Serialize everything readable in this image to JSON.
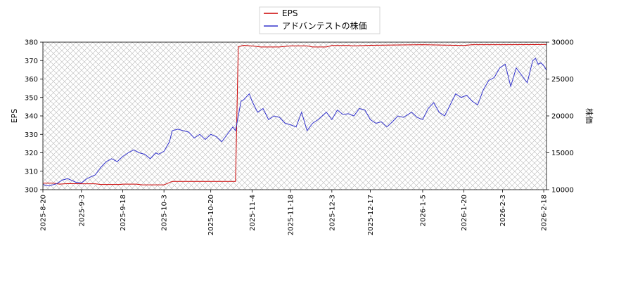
{
  "chart_data": {
    "type": "line",
    "legend": {
      "placement": "top-center",
      "entries": [
        "EPS",
        "アドバンテストの株価"
      ]
    },
    "grid": false,
    "hatched_background": true,
    "x_tick_labels": [
      "2025-8-20",
      "2025-9-3",
      "2025-9-18",
      "2025-10-3",
      "2025-10-20",
      "2025-11-4",
      "2025-11-18",
      "2025-12-3",
      "2025-12-17",
      "2026-1-5",
      "2026-1-20",
      "2026-2-3",
      "2026-2-18"
    ],
    "x_range": [
      "2025-08-20",
      "2026-02-19"
    ],
    "y_left": {
      "label": "EPS",
      "range": [
        300,
        380
      ],
      "ticks": [
        300,
        310,
        320,
        330,
        340,
        350,
        360,
        370,
        380
      ]
    },
    "y_right": {
      "label": "株価",
      "range": [
        10000,
        30000
      ],
      "ticks": [
        10000,
        15000,
        20000,
        25000,
        30000
      ]
    },
    "series": [
      {
        "name": "EPS",
        "axis": "left",
        "color": "#cc0000",
        "points": [
          [
            "2025-08-20",
            303.5
          ],
          [
            "2025-08-24",
            303.5
          ],
          [
            "2025-08-26",
            303.0
          ],
          [
            "2025-08-29",
            303.3
          ],
          [
            "2025-09-03",
            303.2
          ],
          [
            "2025-09-08",
            303.2
          ],
          [
            "2025-09-10",
            302.8
          ],
          [
            "2025-09-17",
            302.8
          ],
          [
            "2025-09-18",
            303.0
          ],
          [
            "2025-09-23",
            303.0
          ],
          [
            "2025-09-25",
            302.6
          ],
          [
            "2025-10-01",
            302.6
          ],
          [
            "2025-10-03",
            302.6
          ],
          [
            "2025-10-06",
            304.5
          ],
          [
            "2025-10-14",
            304.5
          ],
          [
            "2025-10-20",
            304.5
          ],
          [
            "2025-10-28",
            304.5
          ],
          [
            "2025-10-29",
            304.5
          ],
          [
            "2025-10-30",
            377.5
          ],
          [
            "2025-11-01",
            378.3
          ],
          [
            "2025-11-05",
            377.8
          ],
          [
            "2025-11-07",
            377.4
          ],
          [
            "2025-11-14",
            377.4
          ],
          [
            "2025-11-18",
            378.0
          ],
          [
            "2025-11-24",
            378.0
          ],
          [
            "2025-11-26",
            377.4
          ],
          [
            "2025-12-01",
            377.4
          ],
          [
            "2025-12-03",
            378.2
          ],
          [
            "2025-12-09",
            378.2
          ],
          [
            "2025-12-11",
            378.0
          ],
          [
            "2025-12-17",
            378.3
          ],
          [
            "2026-01-05",
            378.6
          ],
          [
            "2026-01-13",
            378.4
          ],
          [
            "2026-01-20",
            378.2
          ],
          [
            "2026-01-23",
            378.6
          ],
          [
            "2026-02-03",
            378.6
          ],
          [
            "2026-02-18",
            378.7
          ],
          [
            "2026-02-19",
            378.7
          ]
        ]
      },
      {
        "name": "アドバンテストの株価",
        "axis": "right",
        "color": "#3333cc",
        "points": [
          [
            "2025-08-20",
            10700
          ],
          [
            "2025-08-22",
            10500
          ],
          [
            "2025-08-25",
            10800
          ],
          [
            "2025-08-27",
            11300
          ],
          [
            "2025-08-29",
            11500
          ],
          [
            "2025-09-01",
            11000
          ],
          [
            "2025-09-03",
            10900
          ],
          [
            "2025-09-05",
            11500
          ],
          [
            "2025-09-08",
            12000
          ],
          [
            "2025-09-10",
            13000
          ],
          [
            "2025-09-12",
            13800
          ],
          [
            "2025-09-14",
            14200
          ],
          [
            "2025-09-16",
            13800
          ],
          [
            "2025-09-18",
            14500
          ],
          [
            "2025-09-20",
            15000
          ],
          [
            "2025-09-22",
            15400
          ],
          [
            "2025-09-24",
            15000
          ],
          [
            "2025-09-26",
            14800
          ],
          [
            "2025-09-28",
            14200
          ],
          [
            "2025-09-30",
            15000
          ],
          [
            "2025-10-01",
            14800
          ],
          [
            "2025-10-03",
            15200
          ],
          [
            "2025-10-05",
            16500
          ],
          [
            "2025-10-06",
            18000
          ],
          [
            "2025-10-08",
            18200
          ],
          [
            "2025-10-10",
            18000
          ],
          [
            "2025-10-12",
            17800
          ],
          [
            "2025-10-14",
            17000
          ],
          [
            "2025-10-16",
            17500
          ],
          [
            "2025-10-18",
            16800
          ],
          [
            "2025-10-20",
            17500
          ],
          [
            "2025-10-22",
            17200
          ],
          [
            "2025-10-24",
            16500
          ],
          [
            "2025-10-26",
            17500
          ],
          [
            "2025-10-28",
            18500
          ],
          [
            "2025-10-29",
            18000
          ],
          [
            "2025-10-31",
            22000
          ],
          [
            "2025-11-01",
            22200
          ],
          [
            "2025-11-03",
            23000
          ],
          [
            "2025-11-04",
            22000
          ],
          [
            "2025-11-06",
            20500
          ],
          [
            "2025-11-08",
            21000
          ],
          [
            "2025-11-10",
            19500
          ],
          [
            "2025-11-12",
            20000
          ],
          [
            "2025-11-14",
            19800
          ],
          [
            "2025-11-16",
            19000
          ],
          [
            "2025-11-18",
            18800
          ],
          [
            "2025-11-20",
            18500
          ],
          [
            "2025-11-22",
            20500
          ],
          [
            "2025-11-24",
            18000
          ],
          [
            "2025-11-26",
            19000
          ],
          [
            "2025-11-28",
            19500
          ],
          [
            "2025-12-01",
            20500
          ],
          [
            "2025-12-03",
            19500
          ],
          [
            "2025-12-05",
            20800
          ],
          [
            "2025-12-07",
            20200
          ],
          [
            "2025-12-09",
            20300
          ],
          [
            "2025-12-11",
            20000
          ],
          [
            "2025-12-13",
            21000
          ],
          [
            "2025-12-15",
            20800
          ],
          [
            "2025-12-17",
            19500
          ],
          [
            "2025-12-19",
            19000
          ],
          [
            "2025-12-21",
            19200
          ],
          [
            "2025-12-23",
            18500
          ],
          [
            "2025-12-25",
            19200
          ],
          [
            "2025-12-27",
            20000
          ],
          [
            "2025-12-29",
            19800
          ],
          [
            "2026-01-01",
            20500
          ],
          [
            "2026-01-03",
            19800
          ],
          [
            "2026-01-05",
            19500
          ],
          [
            "2026-01-07",
            21000
          ],
          [
            "2026-01-09",
            21800
          ],
          [
            "2026-01-11",
            20500
          ],
          [
            "2026-01-13",
            20000
          ],
          [
            "2026-01-15",
            21500
          ],
          [
            "2026-01-17",
            23000
          ],
          [
            "2026-01-19",
            22500
          ],
          [
            "2026-01-21",
            22800
          ],
          [
            "2026-01-23",
            22000
          ],
          [
            "2026-01-25",
            21500
          ],
          [
            "2026-01-27",
            23500
          ],
          [
            "2026-01-29",
            24800
          ],
          [
            "2026-01-31",
            25200
          ],
          [
            "2026-02-02",
            26500
          ],
          [
            "2026-02-04",
            27000
          ],
          [
            "2026-02-06",
            24000
          ],
          [
            "2026-02-08",
            26500
          ],
          [
            "2026-02-10",
            25500
          ],
          [
            "2026-02-12",
            24500
          ],
          [
            "2026-02-14",
            27500
          ],
          [
            "2026-02-15",
            27800
          ],
          [
            "2026-02-16",
            27000
          ],
          [
            "2026-02-17",
            27200
          ],
          [
            "2026-02-18",
            26800
          ],
          [
            "2026-02-19",
            26200
          ]
        ]
      }
    ]
  }
}
